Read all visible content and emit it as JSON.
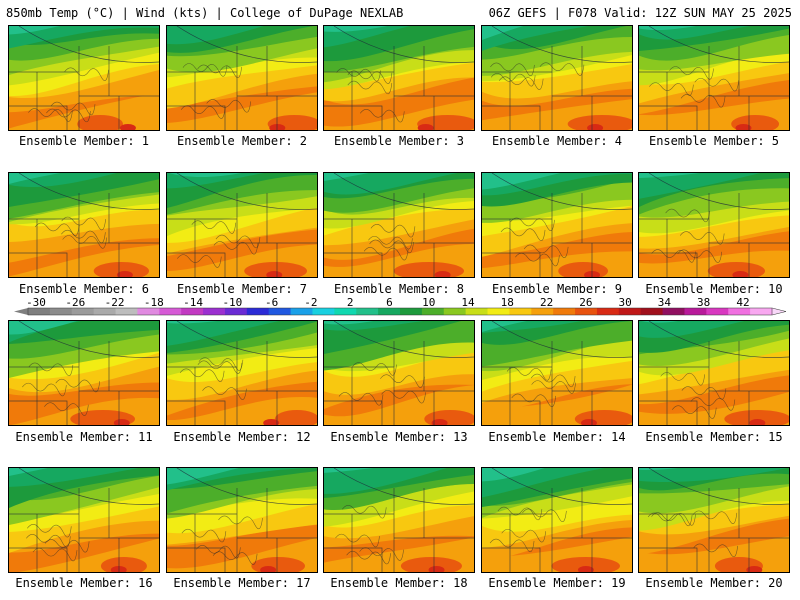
{
  "header": {
    "left": "850mb Temp (°C) | Wind (kts) | College of DuPage NEXLAB",
    "right": "06Z GEFS | F078 Valid: 12Z SUN MAY 25 2025"
  },
  "panels": [
    {
      "label": "Ensemble Member: 1"
    },
    {
      "label": "Ensemble Member: 2"
    },
    {
      "label": "Ensemble Member: 3"
    },
    {
      "label": "Ensemble Member: 4"
    },
    {
      "label": "Ensemble Member: 5"
    },
    {
      "label": "Ensemble Member: 6"
    },
    {
      "label": "Ensemble Member: 7"
    },
    {
      "label": "Ensemble Member: 8"
    },
    {
      "label": "Ensemble Member: 9"
    },
    {
      "label": "Ensemble Member: 10"
    },
    {
      "label": "Ensemble Member: 11"
    },
    {
      "label": "Ensemble Member: 12"
    },
    {
      "label": "Ensemble Member: 13"
    },
    {
      "label": "Ensemble Member: 14"
    },
    {
      "label": "Ensemble Member: 15"
    },
    {
      "label": "Ensemble Member: 16"
    },
    {
      "label": "Ensemble Member: 17"
    },
    {
      "label": "Ensemble Member: 18"
    },
    {
      "label": "Ensemble Member: 19"
    },
    {
      "label": "Ensemble Member: 20"
    }
  ],
  "colorbar": {
    "ticks": [
      "-30",
      "-26",
      "-22",
      "-18",
      "-14",
      "-10",
      "-6",
      "-2",
      "2",
      "6",
      "10",
      "14",
      "18",
      "22",
      "26",
      "30",
      "34",
      "38",
      "42"
    ],
    "colors": [
      "#7f7f7f",
      "#8c8c8c",
      "#9b9b9b",
      "#aaaaaa",
      "#bdbdbd",
      "#e08ae0",
      "#d65ad6",
      "#c23ac2",
      "#9b30d0",
      "#6a2bd4",
      "#2b2bd6",
      "#2058e0",
      "#1aa0e8",
      "#19d0e0",
      "#10d8b0",
      "#22c08a",
      "#16a860",
      "#1d9a3c",
      "#4cae2a",
      "#8ac820",
      "#c8de18",
      "#f2ec14",
      "#f8c810",
      "#f5a00c",
      "#f07a0a",
      "#e8520e",
      "#d82a14",
      "#c01818",
      "#a0101c",
      "#901060",
      "#b81a9a",
      "#d838c0",
      "#f070e0",
      "#f8a8f0"
    ]
  }
}
